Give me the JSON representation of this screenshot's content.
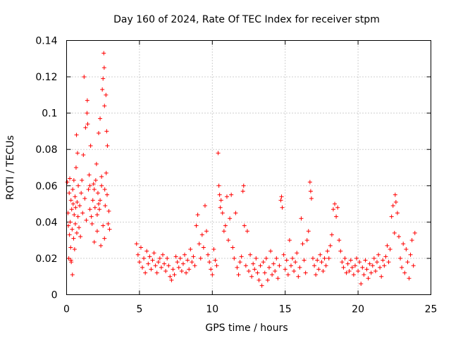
{
  "chart_data": {
    "type": "scatter",
    "title": "Day 160 of 2024, Rate Of TEC Index for receiver stpm",
    "xlabel": "GPS time / hours",
    "ylabel": "ROTI / TECUs",
    "xlim": [
      0,
      25
    ],
    "ylim": [
      0,
      0.14
    ],
    "xticks": [
      0,
      5,
      10,
      15,
      20,
      25
    ],
    "xtick_labels": [
      "0",
      "5",
      "10",
      "15",
      "20",
      "25"
    ],
    "yticks": [
      0,
      0.02,
      0.04,
      0.06,
      0.08,
      0.1,
      0.12,
      0.14
    ],
    "ytick_labels": [
      "0",
      "0.02",
      "0.04",
      "0.06",
      "0.08",
      "0.1",
      "0.12",
      "0.14"
    ],
    "grid": true,
    "marker": "plus",
    "color": "#ff0000",
    "series": [
      {
        "name": "ROTI",
        "points": [
          [
            0.05,
            0.062
          ],
          [
            0.1,
            0.045
          ],
          [
            0.12,
            0.038
          ],
          [
            0.15,
            0.02
          ],
          [
            0.18,
            0.056
          ],
          [
            0.2,
            0.033
          ],
          [
            0.22,
            0.064
          ],
          [
            0.25,
            0.04
          ],
          [
            0.28,
            0.026
          ],
          [
            0.3,
            0.052
          ],
          [
            0.32,
            0.018
          ],
          [
            0.35,
            0.047
          ],
          [
            0.38,
            0.036
          ],
          [
            0.4,
            0.011
          ],
          [
            0.42,
            0.058
          ],
          [
            0.45,
            0.05
          ],
          [
            0.48,
            0.031
          ],
          [
            0.5,
            0.063
          ],
          [
            0.52,
            0.044
          ],
          [
            0.55,
            0.025
          ],
          [
            0.58,
            0.054
          ],
          [
            0.6,
            0.039
          ],
          [
            0.62,
            0.048
          ],
          [
            0.65,
            0.07
          ],
          [
            0.68,
            0.088
          ],
          [
            0.7,
            0.034
          ],
          [
            0.72,
            0.051
          ],
          [
            0.75,
            0.078
          ],
          [
            0.78,
            0.043
          ],
          [
            0.8,
            0.06
          ],
          [
            0.85,
            0.037
          ],
          [
            0.9,
            0.049
          ],
          [
            0.95,
            0.032
          ],
          [
            1.0,
            0.056
          ],
          [
            1.05,
            0.063
          ],
          [
            1.1,
            0.045
          ],
          [
            1.15,
            0.077
          ],
          [
            1.2,
            0.12
          ],
          [
            1.25,
            0.053
          ],
          [
            1.3,
            0.092
          ],
          [
            1.35,
            0.041
          ],
          [
            1.4,
            0.1
          ],
          [
            1.42,
            0.107
          ],
          [
            1.45,
            0.094
          ],
          [
            1.5,
            0.058
          ],
          [
            1.55,
            0.066
          ],
          [
            1.6,
            0.047
          ],
          [
            1.65,
            0.082
          ],
          [
            1.7,
            0.043
          ],
          [
            1.75,
            0.039
          ],
          [
            1.8,
            0.052
          ],
          [
            1.85,
            0.061
          ],
          [
            1.9,
            0.029
          ],
          [
            1.95,
            0.048
          ],
          [
            2.0,
            0.063
          ],
          [
            2.05,
            0.072
          ],
          [
            2.1,
            0.035
          ],
          [
            2.15,
            0.056
          ],
          [
            2.2,
            0.089
          ],
          [
            2.25,
            0.047
          ],
          [
            2.3,
            0.097
          ],
          [
            2.35,
            0.027
          ],
          [
            2.4,
            0.06
          ],
          [
            2.45,
            0.113
          ],
          [
            2.5,
            0.119
          ],
          [
            2.55,
            0.133
          ],
          [
            2.58,
            0.125
          ],
          [
            2.6,
            0.104
          ],
          [
            2.62,
            0.058
          ],
          [
            2.65,
            0.049
          ],
          [
            2.7,
            0.11
          ],
          [
            2.72,
            0.067
          ],
          [
            2.75,
            0.09
          ],
          [
            2.78,
            0.055
          ],
          [
            2.8,
            0.082
          ],
          [
            2.85,
            0.039
          ],
          [
            2.9,
            0.046
          ],
          [
            2.95,
            0.036
          ],
          [
            2.5,
            0.038
          ],
          [
            2.6,
            0.031
          ],
          [
            2.3,
            0.052
          ],
          [
            2.1,
            0.044
          ],
          [
            1.6,
            0.06
          ],
          [
            0.3,
            0.019
          ],
          [
            2.4,
            0.065
          ],
          [
            2.2,
            0.05
          ],
          [
            1.9,
            0.058
          ],
          [
            4.8,
            0.028
          ],
          [
            4.9,
            0.022
          ],
          [
            5.0,
            0.018
          ],
          [
            5.1,
            0.026
          ],
          [
            5.2,
            0.015
          ],
          [
            5.3,
            0.02
          ],
          [
            5.4,
            0.012
          ],
          [
            5.5,
            0.024
          ],
          [
            5.6,
            0.017
          ],
          [
            5.7,
            0.021
          ],
          [
            5.8,
            0.014
          ],
          [
            5.9,
            0.019
          ],
          [
            6.0,
            0.023
          ],
          [
            6.1,
            0.016
          ],
          [
            6.2,
            0.012
          ],
          [
            6.3,
            0.018
          ],
          [
            6.4,
            0.02
          ],
          [
            6.5,
            0.015
          ],
          [
            6.6,
            0.022
          ],
          [
            6.7,
            0.017
          ],
          [
            6.8,
            0.013
          ],
          [
            6.9,
            0.02
          ],
          [
            7.0,
            0.016
          ],
          [
            7.1,
            0.01
          ],
          [
            7.2,
            0.008
          ],
          [
            7.3,
            0.014
          ],
          [
            7.4,
            0.011
          ],
          [
            7.5,
            0.021
          ],
          [
            7.6,
            0.018
          ],
          [
            7.7,
            0.015
          ],
          [
            7.8,
            0.02
          ],
          [
            7.9,
            0.013
          ],
          [
            8.0,
            0.017
          ],
          [
            8.1,
            0.022
          ],
          [
            8.2,
            0.012
          ],
          [
            8.3,
            0.019
          ],
          [
            8.4,
            0.014
          ],
          [
            8.5,
            0.025
          ],
          [
            8.6,
            0.018
          ],
          [
            8.7,
            0.021
          ],
          [
            8.8,
            0.016
          ],
          [
            8.9,
            0.038
          ],
          [
            9.0,
            0.044
          ],
          [
            9.1,
            0.028
          ],
          [
            9.2,
            0.02
          ],
          [
            9.3,
            0.033
          ],
          [
            9.4,
            0.026
          ],
          [
            9.5,
            0.049
          ],
          [
            9.6,
            0.035
          ],
          [
            9.7,
            0.022
          ],
          [
            9.8,
            0.018
          ],
          [
            9.9,
            0.014
          ],
          [
            10.0,
            0.011
          ],
          [
            10.1,
            0.025
          ],
          [
            10.2,
            0.019
          ],
          [
            10.3,
            0.016
          ],
          [
            10.4,
            0.078
          ],
          [
            10.45,
            0.06
          ],
          [
            10.5,
            0.055
          ],
          [
            10.55,
            0.048
          ],
          [
            10.6,
            0.052
          ],
          [
            10.7,
            0.045
          ],
          [
            10.8,
            0.035
          ],
          [
            10.9,
            0.038
          ],
          [
            11.0,
            0.054
          ],
          [
            11.1,
            0.03
          ],
          [
            11.2,
            0.042
          ],
          [
            11.3,
            0.055
          ],
          [
            11.4,
            0.026
          ],
          [
            11.5,
            0.02
          ],
          [
            11.6,
            0.045
          ],
          [
            11.7,
            0.015
          ],
          [
            11.8,
            0.011
          ],
          [
            11.9,
            0.018
          ],
          [
            12.0,
            0.021
          ],
          [
            12.1,
            0.057
          ],
          [
            12.15,
            0.06
          ],
          [
            12.2,
            0.038
          ],
          [
            12.3,
            0.016
          ],
          [
            12.4,
            0.035
          ],
          [
            12.5,
            0.013
          ],
          [
            12.6,
            0.022
          ],
          [
            12.7,
            0.01
          ],
          [
            12.8,
            0.017
          ],
          [
            12.9,
            0.014
          ],
          [
            13.0,
            0.02
          ],
          [
            13.1,
            0.012
          ],
          [
            13.2,
            0.008
          ],
          [
            13.3,
            0.016
          ],
          [
            13.4,
            0.005
          ],
          [
            13.5,
            0.018
          ],
          [
            13.6,
            0.012
          ],
          [
            13.7,
            0.02
          ],
          [
            13.8,
            0.008
          ],
          [
            13.9,
            0.015
          ],
          [
            14.0,
            0.024
          ],
          [
            14.1,
            0.011
          ],
          [
            14.2,
            0.017
          ],
          [
            14.3,
            0.013
          ],
          [
            14.4,
            0.02
          ],
          [
            14.5,
            0.009
          ],
          [
            14.6,
            0.016
          ],
          [
            14.7,
            0.052
          ],
          [
            14.75,
            0.054
          ],
          [
            14.8,
            0.048
          ],
          [
            14.9,
            0.022
          ],
          [
            15.0,
            0.014
          ],
          [
            15.1,
            0.019
          ],
          [
            15.2,
            0.011
          ],
          [
            15.3,
            0.03
          ],
          [
            15.4,
            0.016
          ],
          [
            15.5,
            0.02
          ],
          [
            15.6,
            0.013
          ],
          [
            15.7,
            0.018
          ],
          [
            15.8,
            0.023
          ],
          [
            15.9,
            0.01
          ],
          [
            16.0,
            0.015
          ],
          [
            16.1,
            0.042
          ],
          [
            16.2,
            0.028
          ],
          [
            16.3,
            0.019
          ],
          [
            16.4,
            0.012
          ],
          [
            16.5,
            0.03
          ],
          [
            16.6,
            0.035
          ],
          [
            16.7,
            0.062
          ],
          [
            16.75,
            0.057
          ],
          [
            16.8,
            0.053
          ],
          [
            16.9,
            0.02
          ],
          [
            17.0,
            0.016
          ],
          [
            17.1,
            0.011
          ],
          [
            17.2,
            0.019
          ],
          [
            17.3,
            0.014
          ],
          [
            17.4,
            0.022
          ],
          [
            17.5,
            0.018
          ],
          [
            17.6,
            0.013
          ],
          [
            17.7,
            0.02
          ],
          [
            17.8,
            0.016
          ],
          [
            17.9,
            0.024
          ],
          [
            18.0,
            0.02
          ],
          [
            18.1,
            0.027
          ],
          [
            18.2,
            0.033
          ],
          [
            18.3,
            0.047
          ],
          [
            18.4,
            0.05
          ],
          [
            18.5,
            0.043
          ],
          [
            18.6,
            0.048
          ],
          [
            18.7,
            0.03
          ],
          [
            18.8,
            0.024
          ],
          [
            18.9,
            0.018
          ],
          [
            19.0,
            0.015
          ],
          [
            19.1,
            0.02
          ],
          [
            19.2,
            0.012
          ],
          [
            19.3,
            0.017
          ],
          [
            19.4,
            0.013
          ],
          [
            19.5,
            0.019
          ],
          [
            19.6,
            0.015
          ],
          [
            19.7,
            0.011
          ],
          [
            19.8,
            0.016
          ],
          [
            19.9,
            0.02
          ],
          [
            20.0,
            0.013
          ],
          [
            20.1,
            0.018
          ],
          [
            20.2,
            0.006
          ],
          [
            20.3,
            0.015
          ],
          [
            20.4,
            0.011
          ],
          [
            20.5,
            0.019
          ],
          [
            20.6,
            0.014
          ],
          [
            20.7,
            0.009
          ],
          [
            20.8,
            0.017
          ],
          [
            20.9,
            0.012
          ],
          [
            21.0,
            0.016
          ],
          [
            21.1,
            0.02
          ],
          [
            21.2,
            0.013
          ],
          [
            21.3,
            0.018
          ],
          [
            21.4,
            0.022
          ],
          [
            21.5,
            0.015
          ],
          [
            21.6,
            0.01
          ],
          [
            21.7,
            0.019
          ],
          [
            21.8,
            0.016
          ],
          [
            21.9,
            0.021
          ],
          [
            22.0,
            0.027
          ],
          [
            22.1,
            0.018
          ],
          [
            22.2,
            0.025
          ],
          [
            22.3,
            0.043
          ],
          [
            22.4,
            0.049
          ],
          [
            22.5,
            0.034
          ],
          [
            22.55,
            0.055
          ],
          [
            22.6,
            0.051
          ],
          [
            22.7,
            0.045
          ],
          [
            22.8,
            0.032
          ],
          [
            22.9,
            0.02
          ],
          [
            23.0,
            0.015
          ],
          [
            23.1,
            0.028
          ],
          [
            23.2,
            0.012
          ],
          [
            23.3,
            0.025
          ],
          [
            23.4,
            0.018
          ],
          [
            23.5,
            0.009
          ],
          [
            23.6,
            0.022
          ],
          [
            23.7,
            0.03
          ],
          [
            23.8,
            0.016
          ],
          [
            23.9,
            0.034
          ]
        ]
      }
    ]
  }
}
